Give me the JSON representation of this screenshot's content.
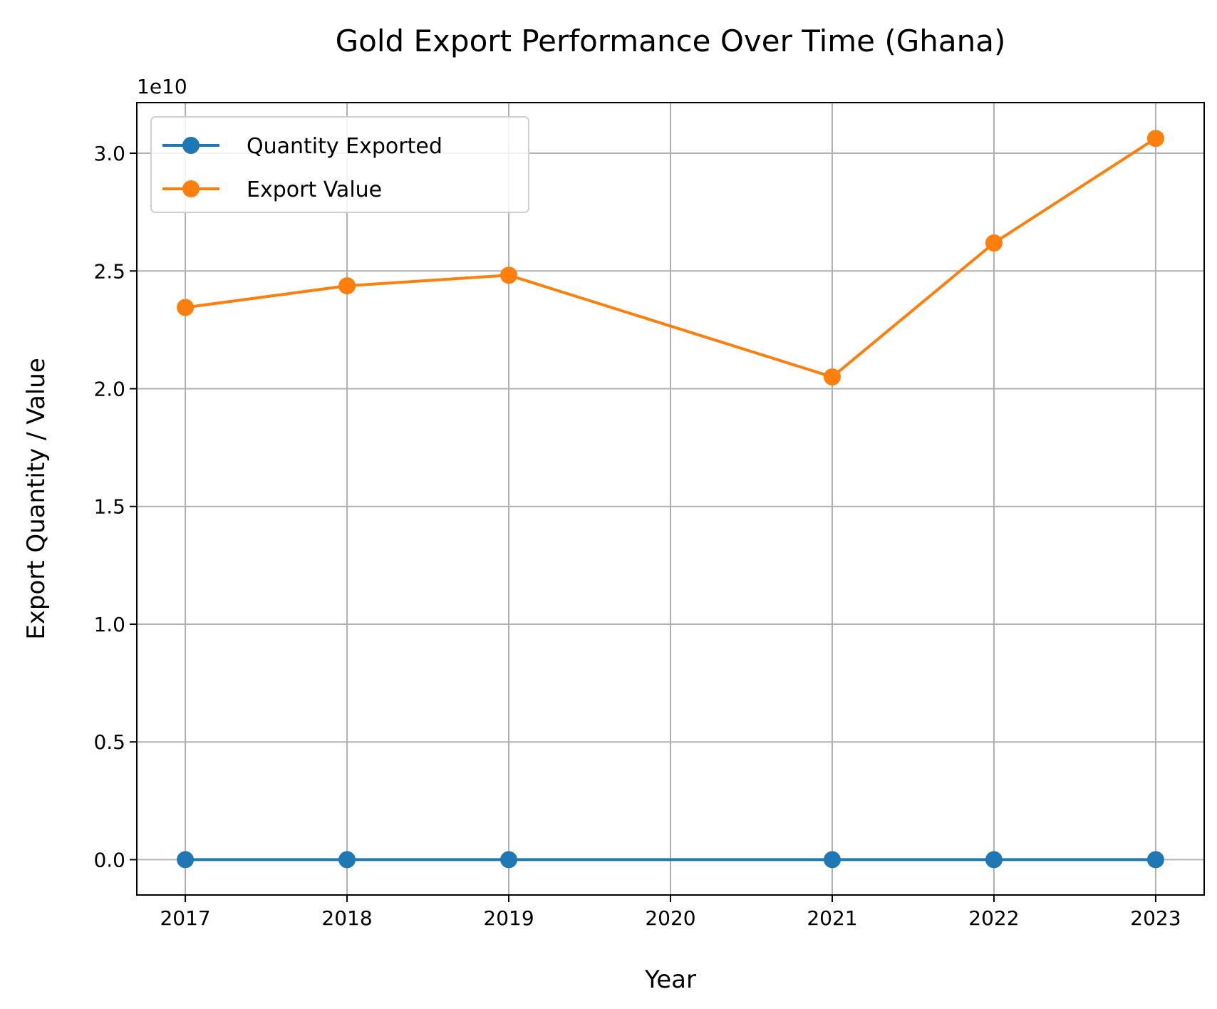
{
  "chart_data": {
    "type": "line",
    "title": "Gold Export Performance Over Time (Ghana)",
    "xlabel": "Year",
    "ylabel": "Export Quantity  / Value",
    "y_offset_label": "1e10",
    "x": [
      2017,
      2018,
      2019,
      2021,
      2022,
      2023
    ],
    "xticks": [
      "2017",
      "2018",
      "2019",
      "2020",
      "2021",
      "2022",
      "2023"
    ],
    "yticks": [
      "0.0",
      "0.5",
      "1.0",
      "1.5",
      "2.0",
      "2.5",
      "3.0"
    ],
    "xlim": [
      2016.7,
      2023.3
    ],
    "ylim": [
      -0.15,
      3.215
    ],
    "grid": true,
    "legend_position": "top-left",
    "series": [
      {
        "name": "Quantity Exported",
        "color": "#1f77b4",
        "values": [
          0.0,
          0.0,
          0.0,
          0.0,
          0.0,
          0.0
        ]
      },
      {
        "name": "Export Value",
        "color": "#ff7f0e",
        "values": [
          2.345,
          2.437,
          2.482,
          2.05,
          2.619,
          3.063
        ]
      }
    ]
  }
}
